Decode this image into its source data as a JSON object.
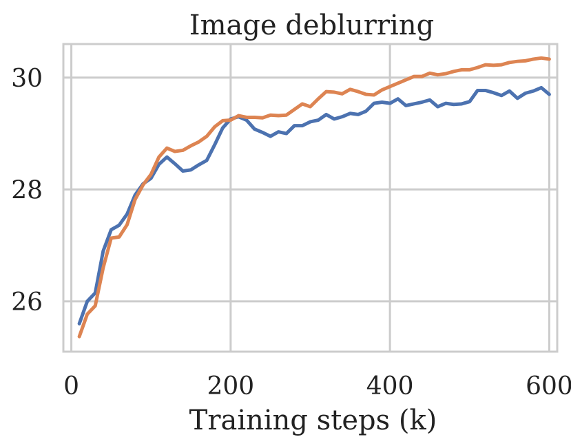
{
  "chart_data": {
    "type": "line",
    "title": "Image deblurring",
    "xlabel": "Training steps (k)",
    "ylabel": "",
    "xlim": [
      -10,
      610
    ],
    "ylim": [
      25.1,
      30.6
    ],
    "xticks": [
      0,
      200,
      400,
      600
    ],
    "yticks": [
      26,
      28,
      30
    ],
    "xtick_labels": [
      "0",
      "200",
      "400",
      "600"
    ],
    "ytick_labels": [
      "26",
      "28",
      "30"
    ],
    "grid": true,
    "legend": "none",
    "x": [
      10,
      20,
      30,
      40,
      50,
      60,
      70,
      80,
      90,
      100,
      110,
      120,
      130,
      140,
      150,
      160,
      170,
      180,
      190,
      200,
      210,
      220,
      230,
      240,
      250,
      260,
      270,
      280,
      290,
      300,
      310,
      320,
      330,
      340,
      350,
      360,
      370,
      380,
      390,
      400,
      410,
      420,
      430,
      440,
      450,
      460,
      470,
      480,
      490,
      500,
      510,
      520,
      530,
      540,
      550,
      560,
      570,
      580,
      590,
      600
    ],
    "series": [
      {
        "color": "#4c72b0",
        "values": [
          25.6,
          26.0,
          26.15,
          26.9,
          27.28,
          27.36,
          27.56,
          27.9,
          28.1,
          28.2,
          28.45,
          28.58,
          28.46,
          28.33,
          28.35,
          28.44,
          28.52,
          28.8,
          29.1,
          29.26,
          29.3,
          29.24,
          29.08,
          29.02,
          28.95,
          29.03,
          29.0,
          29.14,
          29.14,
          29.21,
          29.24,
          29.34,
          29.26,
          29.3,
          29.36,
          29.34,
          29.4,
          29.54,
          29.56,
          29.54,
          29.62,
          29.5,
          29.53,
          29.56,
          29.6,
          29.48,
          29.54,
          29.52,
          29.53,
          29.57,
          29.77,
          29.77,
          29.73,
          29.68,
          29.76,
          29.63,
          29.72,
          29.76,
          29.82,
          29.7
        ]
      },
      {
        "color": "#dd8452",
        "values": [
          25.37,
          25.77,
          25.92,
          26.6,
          27.13,
          27.15,
          27.37,
          27.82,
          28.08,
          28.27,
          28.58,
          28.74,
          28.68,
          28.7,
          28.78,
          28.85,
          28.95,
          29.12,
          29.23,
          29.24,
          29.32,
          29.29,
          29.29,
          29.28,
          29.33,
          29.32,
          29.33,
          29.43,
          29.53,
          29.48,
          29.62,
          29.75,
          29.74,
          29.71,
          29.79,
          29.75,
          29.7,
          29.69,
          29.78,
          29.84,
          29.9,
          29.96,
          30.02,
          30.02,
          30.08,
          30.05,
          30.07,
          30.11,
          30.14,
          30.14,
          30.18,
          30.23,
          30.22,
          30.23,
          30.27,
          30.29,
          30.3,
          30.33,
          30.35,
          30.33
        ]
      }
    ],
    "colors": {
      "grid": "#cccccc",
      "frame": "#cccccc",
      "text": "#222222"
    }
  }
}
